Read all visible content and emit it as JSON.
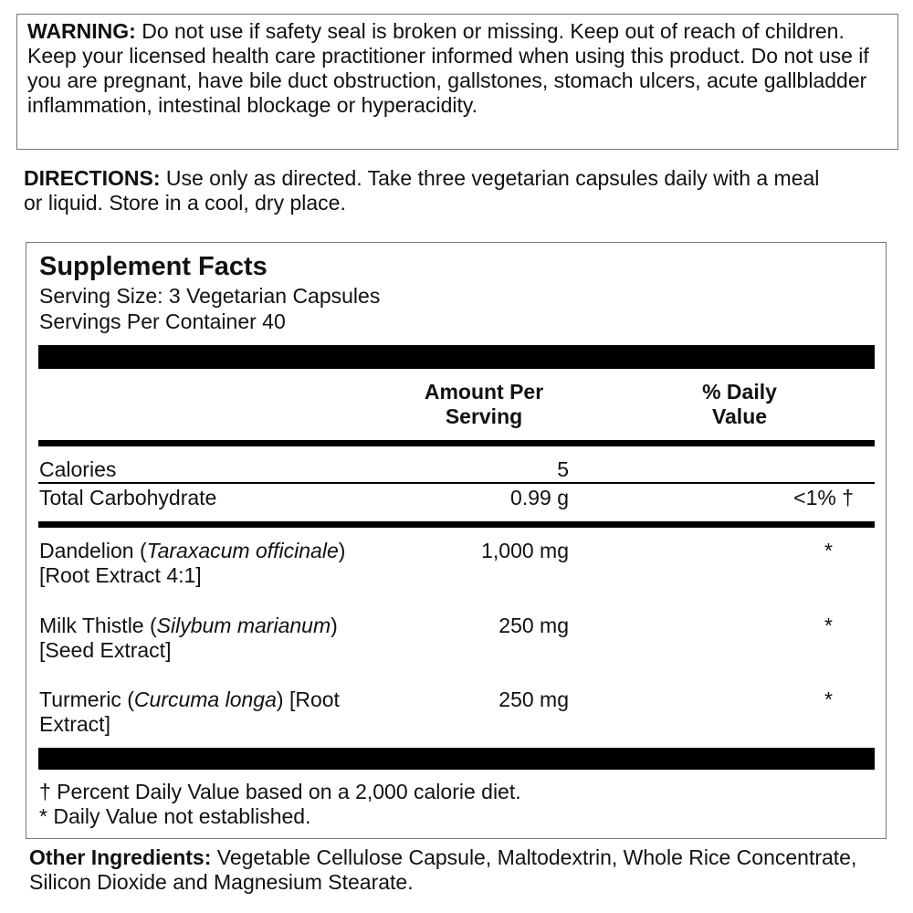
{
  "warning": {
    "label": "WARNING:",
    "text": "Do not use if safety seal is broken or missing. Keep out of reach of children. Keep your licensed health care practitioner informed when using this product. Do not use if you are pregnant, have bile duct obstruction, gallstones, stomach ulcers, acute gallbladder inflammation, intestinal blockage or hyperacidity."
  },
  "directions": {
    "label": "DIRECTIONS:",
    "text": "Use only as directed. Take three vegetarian capsules daily with a meal or liquid.  Store in a cool, dry place."
  },
  "supplement_facts": {
    "title": "Supplement Facts",
    "serving_size": "Serving Size: 3 Vegetarian Capsules",
    "servings_per_container": "Servings Per Container 40",
    "header": {
      "amount": "Amount Per Serving",
      "daily_value": "% Daily Value"
    },
    "nutrients": [
      {
        "name": "Calories",
        "amount": "5"
      },
      {
        "name": "Total Carbohydrate",
        "amount": "0.99 g",
        "daily_value": "<1% †"
      }
    ],
    "ingredients": [
      {
        "name": "Dandelion (",
        "latin": "Taraxacum officinale",
        "rest": ")  [Root Extract 4:1]",
        "amount": "1,000 mg",
        "daily_value": "*"
      },
      {
        "name": "Milk Thistle (",
        "latin": "Silybum marianum",
        "rest": ")  [Seed Extract]",
        "amount": "250 mg",
        "daily_value": "*"
      },
      {
        "name": "Turmeric (",
        "latin": "Curcuma longa",
        "rest": ")  [Root Extract]",
        "amount": "250 mg",
        "daily_value": "*"
      }
    ],
    "footnotes": [
      "† Percent Daily Value based on a 2,000 calorie diet.",
      "* Daily Value not established."
    ]
  },
  "other_ingredients": {
    "label": "Other Ingredients:",
    "text": "Vegetable Cellulose Capsule, Maltodextrin, Whole Rice Concentrate, Silicon Dioxide and Magnesium Stearate."
  }
}
